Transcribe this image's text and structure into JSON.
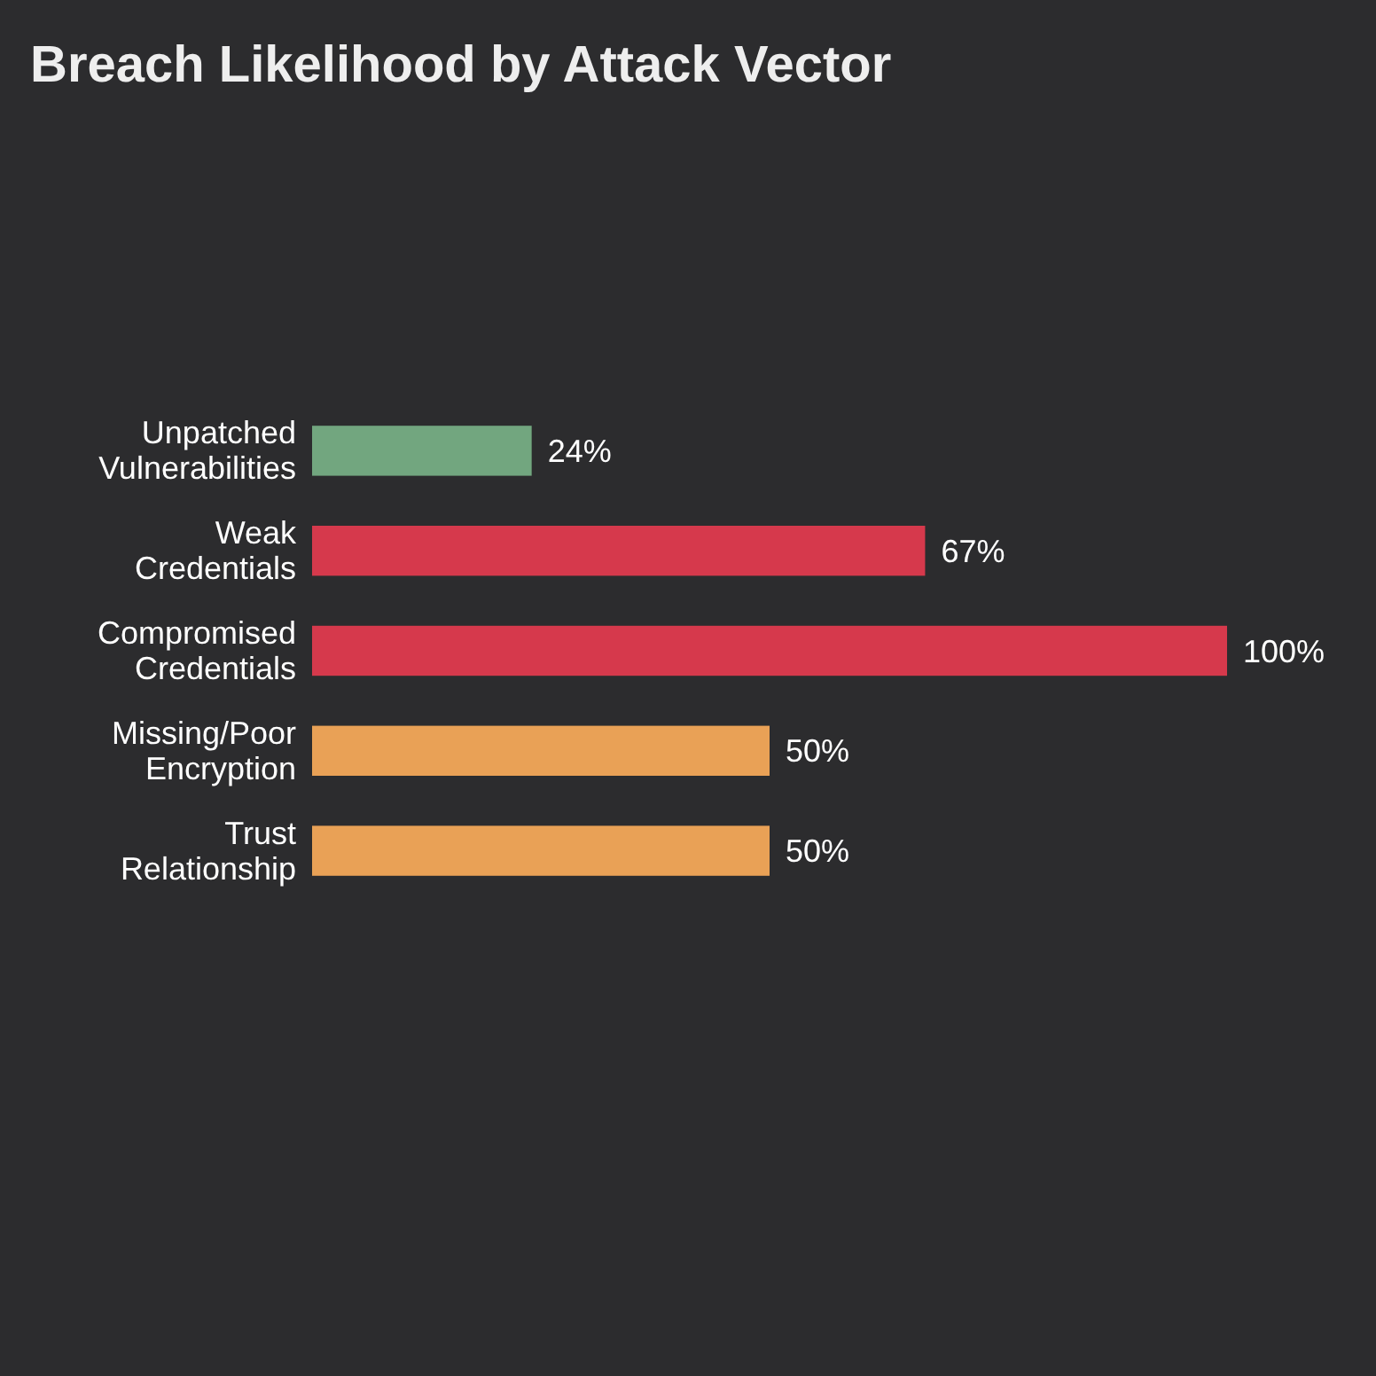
{
  "chart_data": {
    "type": "bar",
    "title": "Breach Likelihood by Attack Vector",
    "orientation": "horizontal",
    "categories": [
      "Unpatched Vulnerabilities",
      "Weak Credentials",
      "Compromised Credentials",
      "Missing/Poor Encryption",
      "Trust Relationship"
    ],
    "values": [
      24,
      67,
      100,
      50,
      50
    ],
    "colors": [
      "#72a67f",
      "#d6394c",
      "#d6394c",
      "#e9a156",
      "#e9a156"
    ],
    "value_labels": [
      "24%",
      "67%",
      "100%",
      "50%",
      "50%"
    ]
  }
}
